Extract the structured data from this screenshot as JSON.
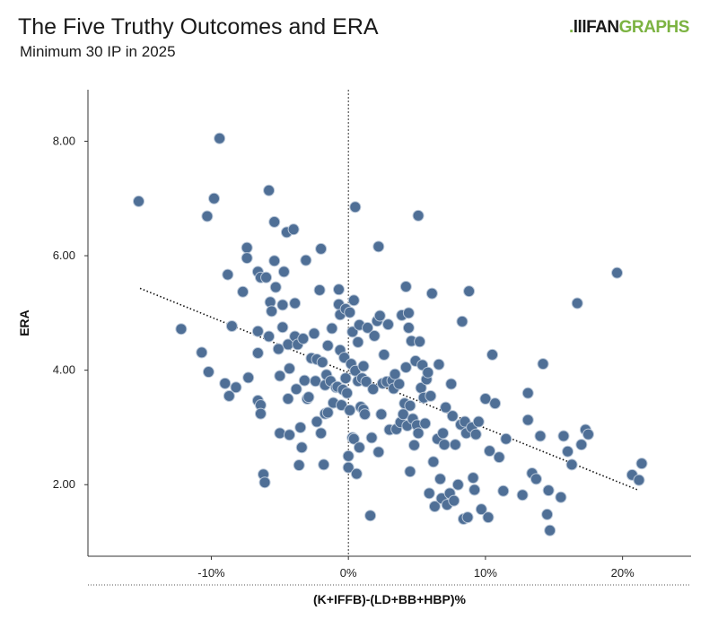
{
  "header": {
    "title": "The Five Truthy Outcomes and ERA",
    "subtitle": "Minimum 30 IP in 2025"
  },
  "logo": {
    "prefix": ".",
    "mark": "lll",
    "word_fan": "FAN",
    "word_graphs": "GRAPHS",
    "accent_color": "#7cb342"
  },
  "chart_data": {
    "type": "scatter",
    "xlabel": "(K+IFFB)-(LD+BB+HBP)%",
    "ylabel": "ERA",
    "xlim": [
      -0.19,
      0.25
    ],
    "ylim": [
      0.75,
      8.9
    ],
    "x_ticks": [
      {
        "value": -0.1,
        "label": "-10%"
      },
      {
        "value": 0,
        "label": "0%"
      },
      {
        "value": 0.1,
        "label": "10%"
      },
      {
        "value": 0.2,
        "label": "20%"
      }
    ],
    "y_ticks": [
      {
        "value": 2,
        "label": "2.00"
      },
      {
        "value": 4,
        "label": "4.00"
      },
      {
        "value": 6,
        "label": "6.00"
      },
      {
        "value": 8,
        "label": "8.00"
      }
    ],
    "grid": false,
    "reference_line_x": 0,
    "point_color": "#4f6f96",
    "point_edge_color": "#b9c7d8",
    "trendline": {
      "x": [
        -0.152,
        0.212
      ],
      "y": [
        5.43,
        1.9
      ],
      "style": "dotted"
    },
    "points": [
      [
        -0.153,
        6.95
      ],
      [
        -0.122,
        4.72
      ],
      [
        -0.107,
        4.31
      ],
      [
        -0.103,
        6.69
      ],
      [
        -0.102,
        3.97
      ],
      [
        -0.098,
        7.0
      ],
      [
        -0.094,
        8.05
      ],
      [
        -0.09,
        3.77
      ],
      [
        -0.088,
        5.67
      ],
      [
        -0.087,
        3.55
      ],
      [
        -0.085,
        4.77
      ],
      [
        -0.082,
        3.7
      ],
      [
        -0.077,
        5.37
      ],
      [
        -0.073,
        3.87
      ],
      [
        -0.074,
        6.14
      ],
      [
        -0.074,
        5.96
      ],
      [
        -0.066,
        3.47
      ],
      [
        -0.066,
        4.3
      ],
      [
        -0.066,
        4.68
      ],
      [
        -0.066,
        5.72
      ],
      [
        -0.064,
        3.39
      ],
      [
        -0.064,
        5.62
      ],
      [
        -0.064,
        3.24
      ],
      [
        -0.062,
        2.18
      ],
      [
        -0.061,
        2.04
      ],
      [
        -0.06,
        5.62
      ],
      [
        -0.058,
        7.14
      ],
      [
        -0.058,
        4.59
      ],
      [
        -0.057,
        5.19
      ],
      [
        -0.056,
        5.03
      ],
      [
        -0.054,
        6.59
      ],
      [
        -0.054,
        5.91
      ],
      [
        -0.053,
        5.45
      ],
      [
        -0.051,
        4.37
      ],
      [
        -0.05,
        3.9
      ],
      [
        -0.05,
        2.9
      ],
      [
        -0.048,
        4.75
      ],
      [
        -0.048,
        5.14
      ],
      [
        -0.047,
        5.72
      ],
      [
        -0.045,
        6.41
      ],
      [
        -0.044,
        4.45
      ],
      [
        -0.044,
        3.5
      ],
      [
        -0.043,
        4.03
      ],
      [
        -0.043,
        2.87
      ],
      [
        -0.04,
        6.46
      ],
      [
        -0.039,
        5.17
      ],
      [
        -0.039,
        4.59
      ],
      [
        -0.038,
        3.67
      ],
      [
        -0.037,
        4.45
      ],
      [
        -0.036,
        2.34
      ],
      [
        -0.035,
        3.0
      ],
      [
        -0.034,
        2.65
      ],
      [
        -0.033,
        4.55
      ],
      [
        -0.032,
        3.82
      ],
      [
        -0.031,
        5.92
      ],
      [
        -0.03,
        3.5
      ],
      [
        -0.029,
        3.53
      ],
      [
        -0.027,
        4.21
      ],
      [
        -0.025,
        4.64
      ],
      [
        -0.024,
        3.81
      ],
      [
        -0.023,
        3.1
      ],
      [
        -0.023,
        4.19
      ],
      [
        -0.021,
        5.4
      ],
      [
        -0.02,
        6.12
      ],
      [
        -0.02,
        2.9
      ],
      [
        -0.019,
        4.14
      ],
      [
        -0.018,
        2.35
      ],
      [
        -0.017,
        3.74
      ],
      [
        -0.017,
        3.24
      ],
      [
        -0.016,
        3.92
      ],
      [
        -0.015,
        3.26
      ],
      [
        -0.015,
        4.43
      ],
      [
        -0.013,
        3.81
      ],
      [
        -0.012,
        4.73
      ],
      [
        -0.011,
        3.43
      ],
      [
        -0.009,
        3.7
      ],
      [
        -0.008,
        3.71
      ],
      [
        -0.007,
        5.41
      ],
      [
        -0.007,
        5.15
      ],
      [
        -0.006,
        4.35
      ],
      [
        -0.006,
        4.97
      ],
      [
        -0.005,
        3.39
      ],
      [
        -0.004,
        3.66
      ],
      [
        -0.003,
        4.22
      ],
      [
        -0.002,
        3.86
      ],
      [
        -0.002,
        5.07
      ],
      [
        -0.001,
        3.6
      ],
      [
        0.0,
        2.3
      ],
      [
        0.0,
        2.5
      ],
      [
        0.001,
        3.3
      ],
      [
        0.001,
        5.01
      ],
      [
        0.002,
        4.11
      ],
      [
        0.003,
        2.82
      ],
      [
        0.003,
        4.67
      ],
      [
        0.004,
        2.8
      ],
      [
        0.004,
        5.22
      ],
      [
        0.005,
        6.85
      ],
      [
        0.005,
        3.99
      ],
      [
        0.006,
        2.19
      ],
      [
        0.007,
        3.81
      ],
      [
        0.007,
        4.49
      ],
      [
        0.008,
        2.65
      ],
      [
        0.008,
        4.79
      ],
      [
        0.009,
        3.36
      ],
      [
        0.01,
        3.86
      ],
      [
        0.011,
        3.31
      ],
      [
        0.011,
        4.07
      ],
      [
        0.012,
        3.23
      ],
      [
        0.013,
        3.8
      ],
      [
        0.014,
        4.74
      ],
      [
        0.016,
        1.46
      ],
      [
        0.017,
        2.82
      ],
      [
        0.018,
        3.67
      ],
      [
        0.019,
        4.6
      ],
      [
        0.021,
        4.86
      ],
      [
        0.022,
        2.57
      ],
      [
        0.022,
        6.16
      ],
      [
        0.023,
        4.95
      ],
      [
        0.024,
        3.23
      ],
      [
        0.025,
        3.77
      ],
      [
        0.026,
        4.27
      ],
      [
        0.028,
        3.8
      ],
      [
        0.029,
        4.8
      ],
      [
        0.03,
        2.96
      ],
      [
        0.032,
        3.82
      ],
      [
        0.033,
        3.68
      ],
      [
        0.034,
        3.93
      ],
      [
        0.035,
        2.97
      ],
      [
        0.037,
        3.76
      ],
      [
        0.038,
        3.09
      ],
      [
        0.039,
        4.96
      ],
      [
        0.04,
        3.23
      ],
      [
        0.041,
        3.42
      ],
      [
        0.042,
        4.05
      ],
      [
        0.042,
        5.46
      ],
      [
        0.043,
        3.03
      ],
      [
        0.044,
        5.0
      ],
      [
        0.044,
        4.74
      ],
      [
        0.045,
        3.38
      ],
      [
        0.045,
        2.23
      ],
      [
        0.046,
        4.51
      ],
      [
        0.047,
        3.15
      ],
      [
        0.048,
        2.69
      ],
      [
        0.049,
        4.16
      ],
      [
        0.05,
        3.04
      ],
      [
        0.051,
        2.9
      ],
      [
        0.051,
        6.7
      ],
      [
        0.052,
        4.5
      ],
      [
        0.053,
        3.69
      ],
      [
        0.054,
        4.09
      ],
      [
        0.055,
        3.52
      ],
      [
        0.056,
        3.07
      ],
      [
        0.057,
        3.84
      ],
      [
        0.058,
        3.96
      ],
      [
        0.059,
        1.85
      ],
      [
        0.06,
        3.55
      ],
      [
        0.061,
        5.34
      ],
      [
        0.062,
        2.4
      ],
      [
        0.063,
        1.62
      ],
      [
        0.065,
        2.8
      ],
      [
        0.066,
        4.1
      ],
      [
        0.067,
        2.1
      ],
      [
        0.068,
        1.76
      ],
      [
        0.069,
        2.9
      ],
      [
        0.07,
        2.7
      ],
      [
        0.071,
        3.35
      ],
      [
        0.072,
        1.65
      ],
      [
        0.074,
        1.85
      ],
      [
        0.075,
        3.76
      ],
      [
        0.076,
        3.2
      ],
      [
        0.077,
        1.72
      ],
      [
        0.078,
        2.7
      ],
      [
        0.08,
        2.0
      ],
      [
        0.082,
        3.05
      ],
      [
        0.083,
        4.85
      ],
      [
        0.084,
        1.4
      ],
      [
        0.085,
        3.1
      ],
      [
        0.086,
        2.9
      ],
      [
        0.087,
        1.43
      ],
      [
        0.088,
        5.38
      ],
      [
        0.09,
        3.0
      ],
      [
        0.091,
        2.12
      ],
      [
        0.092,
        1.91
      ],
      [
        0.093,
        2.88
      ],
      [
        0.095,
        3.1
      ],
      [
        0.097,
        1.57
      ],
      [
        0.1,
        3.5
      ],
      [
        0.102,
        1.43
      ],
      [
        0.103,
        2.59
      ],
      [
        0.105,
        4.27
      ],
      [
        0.107,
        3.42
      ],
      [
        0.11,
        2.48
      ],
      [
        0.113,
        1.89
      ],
      [
        0.115,
        2.8
      ],
      [
        0.127,
        1.82
      ],
      [
        0.131,
        3.6
      ],
      [
        0.131,
        3.13
      ],
      [
        0.134,
        2.2
      ],
      [
        0.137,
        2.1
      ],
      [
        0.14,
        2.85
      ],
      [
        0.142,
        4.11
      ],
      [
        0.145,
        1.48
      ],
      [
        0.146,
        1.9
      ],
      [
        0.147,
        1.2
      ],
      [
        0.155,
        1.78
      ],
      [
        0.157,
        2.85
      ],
      [
        0.16,
        2.58
      ],
      [
        0.163,
        2.35
      ],
      [
        0.167,
        5.17
      ],
      [
        0.17,
        2.7
      ],
      [
        0.173,
        2.96
      ],
      [
        0.175,
        2.88
      ],
      [
        0.196,
        5.7
      ],
      [
        0.207,
        2.17
      ],
      [
        0.212,
        2.08
      ],
      [
        0.214,
        2.37
      ]
    ]
  }
}
